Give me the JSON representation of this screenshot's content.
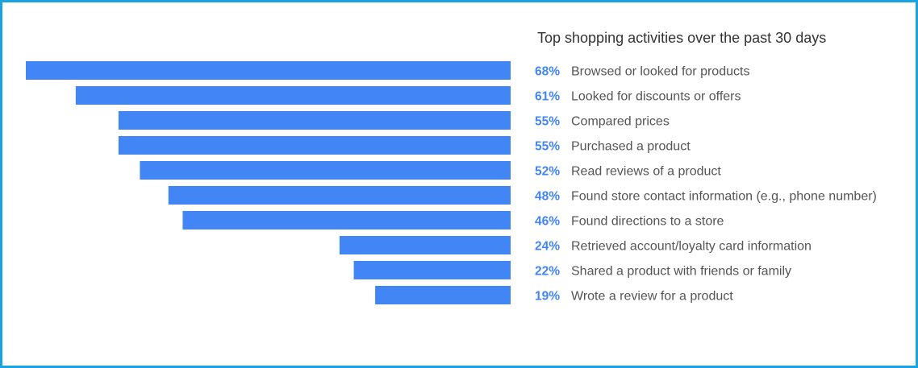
{
  "chart_data": {
    "type": "bar",
    "orientation": "horizontal",
    "title": "Top shopping activities over the past 30 days",
    "categories": [
      "Browsed or looked for products",
      "Looked for discounts or offers",
      "Compared prices",
      "Purchased a product",
      "Read reviews of a product",
      "Found store contact information (e.g., phone number)",
      "Found directions to a store",
      "Retrieved account/loyalty card information",
      "Shared a product with friends or family",
      "Wrote a review for a product"
    ],
    "values": [
      68,
      61,
      55,
      55,
      52,
      48,
      46,
      24,
      22,
      19
    ],
    "value_labels": [
      "68%",
      "61%",
      "55%",
      "55%",
      "52%",
      "48%",
      "46%",
      "24%",
      "22%",
      "19%"
    ],
    "unit": "%",
    "bar_color": "#4285f4",
    "label_color": "#4285f4",
    "grid": false,
    "legend": "none"
  }
}
